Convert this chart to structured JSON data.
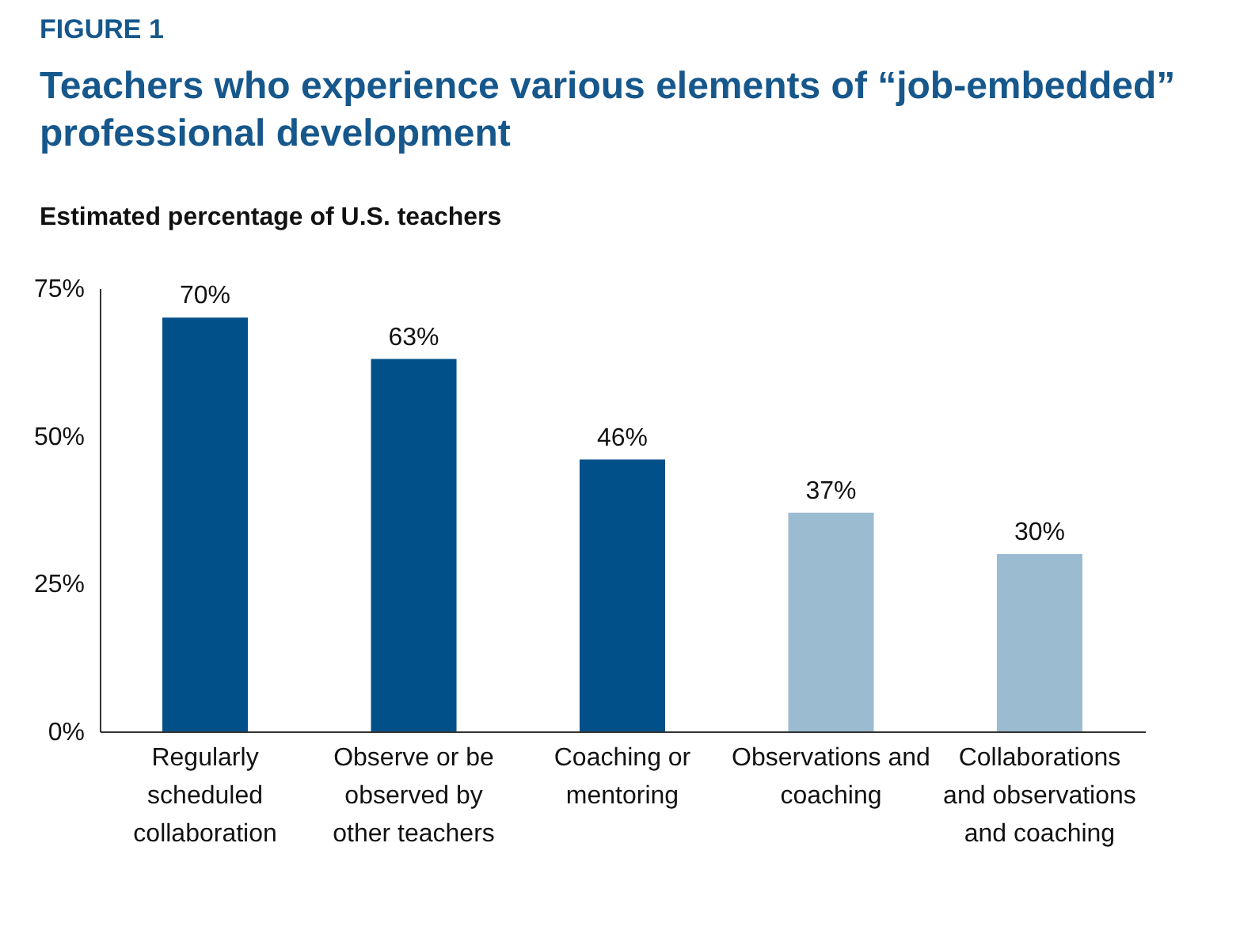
{
  "chart_data": {
    "type": "bar",
    "title": "Teachers who experience various elements of “job-embedded” professional development",
    "annotations": [
      "FIGURE 1"
    ],
    "ylabel": "Estimated percentage of U.S. teachers",
    "categories": [
      "Regularly scheduled collaboration",
      "Observe or be observed by other teachers",
      "Coaching or mentoring",
      "Observations and coaching",
      "Collaborations and observations and coaching"
    ],
    "values": [
      70,
      63,
      46,
      37,
      30
    ],
    "value_labels": [
      "70%",
      "63%",
      "46%",
      "37%",
      "30%"
    ],
    "colors": [
      "#02508a",
      "#02508a",
      "#02508a",
      "#9bbbd1",
      "#9bbbd1"
    ],
    "ylim": [
      0,
      75
    ],
    "yticks": [
      {
        "value": 0,
        "label": "0%"
      },
      {
        "value": 25,
        "label": "25%"
      },
      {
        "value": 50,
        "label": "50%"
      },
      {
        "value": 75,
        "label": "75%"
      }
    ],
    "grid": false
  }
}
